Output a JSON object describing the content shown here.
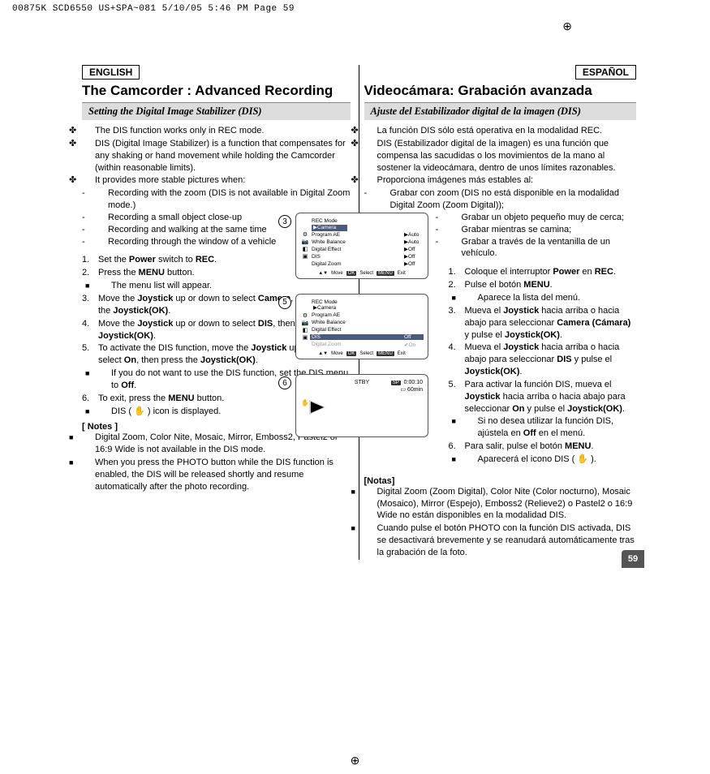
{
  "print_header": "00875K SCD6550 US+SPA~081  5/10/05 5:46 PM  Page 59",
  "page_number": "59",
  "left": {
    "lang": "ENGLISH",
    "title": "The Camcorder : Advanced Recording",
    "section": "Setting the Digital Image Stabilizer (DIS)",
    "intro": [
      "The DIS function works only in REC mode.",
      "DIS (Digital Image Stabilizer) is a function that compensates for any shaking or hand movement while holding the Camcorder (within reasonable limits).",
      "It provides more stable pictures when:"
    ],
    "intro_sub": [
      "Recording with the zoom (DIS is not available in Digital Zoom mode.)",
      "Recording a small object close-up",
      "Recording and walking at the same time",
      "Recording through the window of a vehicle"
    ],
    "steps": [
      {
        "n": "1.",
        "t": "Set the <b>Power</b> switch to <b>REC</b>."
      },
      {
        "n": "2.",
        "t": "Press the <b>MENU</b> button."
      },
      {
        "sub": "The menu list will appear."
      },
      {
        "n": "3.",
        "t": "Move the <b>Joystick</b> up or down to select <b>Camera</b>, then press the <b>Joystick(OK)</b>."
      },
      {
        "n": "4.",
        "t": "Move the <b>Joystick</b> up or down to select <b>DIS</b>, then press the <b>Joystick(OK)</b>."
      },
      {
        "n": "5.",
        "t": "To activate the DIS function, move the <b>Joystick</b> up or down to select <b>On</b>, then press the <b>Joystick(OK)</b>."
      },
      {
        "sub": "If you do not want to use the DIS function, set the DIS menu to <b>Off</b>."
      },
      {
        "n": "6.",
        "t": "To exit, press the <b>MENU</b> button."
      },
      {
        "sub": "DIS ( ✋ ) icon is displayed."
      }
    ],
    "notes_h": "[ Notes ]",
    "notes": [
      "Digital Zoom, Color Nite, Mosaic, Mirror, Emboss2, Pastel2 or 16:9 Wide is not available in the DIS mode.",
      "When you press the PHOTO button while the DIS function is enabled, the DIS will be released shortly and resume automatically after the photo recording."
    ]
  },
  "right": {
    "lang": "ESPAÑOL",
    "title": "Videocámara: Grabación avanzada",
    "section": "Ajuste del Estabilizador digital de la imagen (DIS)",
    "intro": [
      "La función DIS sólo está operativa en la modalidad REC.",
      "DIS (Estabilizador digital de la imagen) es una función que compensa las sacudidas o los movimientos de la mano al sostener la videocámara, dentro de unos límites razonables.",
      "Proporciona imágenes más estables al:"
    ],
    "intro_sub": [
      "Grabar con zoom (DIS no está disponible en la modalidad Digital Zoom (Zoom Digital));",
      "Grabar un objeto pequeño muy de cerca;",
      "Grabar mientras se camina;",
      "Grabar a través de la ventanilla de un vehículo."
    ],
    "steps": [
      {
        "n": "1.",
        "t": "Coloque el interruptor <b>Power</b> en <b>REC</b>."
      },
      {
        "n": "2.",
        "t": "Pulse el botón <b>MENU</b>."
      },
      {
        "sub": "Aparece la lista del menú."
      },
      {
        "n": "3.",
        "t": "Mueva el <b>Joystick</b> hacia arriba o hacia abajo para seleccionar <b>Camera (Cámara)</b> y pulse el <b>Joystick(OK)</b>."
      },
      {
        "n": "4.",
        "t": "Mueva el <b>Joystick</b> hacia arriba o hacia abajo para seleccionar <b>DIS</b> y pulse el <b>Joystick(OK)</b>."
      },
      {
        "n": "5.",
        "t": "Para activar la función DIS, mueva el <b>Joystick</b> hacia arriba o hacia abajo para seleccionar <b>On</b> y pulse el <b>Joystick(OK)</b>."
      },
      {
        "sub": "Si no desea utilizar la función DIS, ajústela en <b>Off</b> en el menú."
      },
      {
        "n": "6.",
        "t": "Para salir, pulse el botón <b>MENU</b>."
      },
      {
        "sub": "Aparecerá el icono DIS ( ✋ )."
      }
    ],
    "notes_h": "[Notas]",
    "notes": [
      "Digital Zoom (Zoom Digital), Color Nite (Color nocturno), Mosaic (Mosaico), Mirror (Espejo), Emboss2 (Relieve2) o Pastel2 o 16:9 Wide no están disponibles en la modalidad DIS.",
      "Cuando pulse el botón PHOTO con la función DIS activada, DIS se desactivará brevemente y se reanudará automáticamente tras la grabación de la foto."
    ]
  },
  "diagrams": {
    "menu3": {
      "step": "3",
      "title": "REC Mode",
      "selected": "▶Camera",
      "rows": [
        {
          "icon": "⚙",
          "label": "Program AE",
          "val": "▶Auto"
        },
        {
          "icon": "📷",
          "label": "White Balance",
          "val": "▶Auto"
        },
        {
          "icon": "◧",
          "label": "Digital Effect",
          "val": "▶Off"
        },
        {
          "icon": "▣",
          "label": "DIS",
          "val": "▶Off"
        },
        {
          "icon": "",
          "label": "Digital Zoom",
          "val": "▶Off"
        }
      ],
      "foot": {
        "move": "Move",
        "select": "Select",
        "exit": "Exit",
        "ok": "OK",
        "menu": "MENU"
      }
    },
    "menu5": {
      "step": "5",
      "title": "REC Mode",
      "selected": "▶Camera",
      "rows": [
        {
          "icon": "⚙",
          "label": "Program AE",
          "val": ""
        },
        {
          "icon": "📷",
          "label": "White Balance",
          "val": ""
        },
        {
          "icon": "◧",
          "label": "Digital Effect",
          "val": ""
        },
        {
          "icon": "▣",
          "label": "DIS",
          "val": "Off",
          "dark": true
        },
        {
          "icon": "",
          "label": "Digital Zoom",
          "val": "✔On",
          "grey": true
        }
      ],
      "foot": {
        "move": "Move",
        "select": "Select",
        "exit": "Exit",
        "ok": "OK",
        "menu": "MENU"
      }
    },
    "lcd": {
      "step": "6",
      "stby": "STBY",
      "sp": "SP",
      "time": "0:00:10",
      "batt": "60min",
      "hand": "✋"
    }
  }
}
